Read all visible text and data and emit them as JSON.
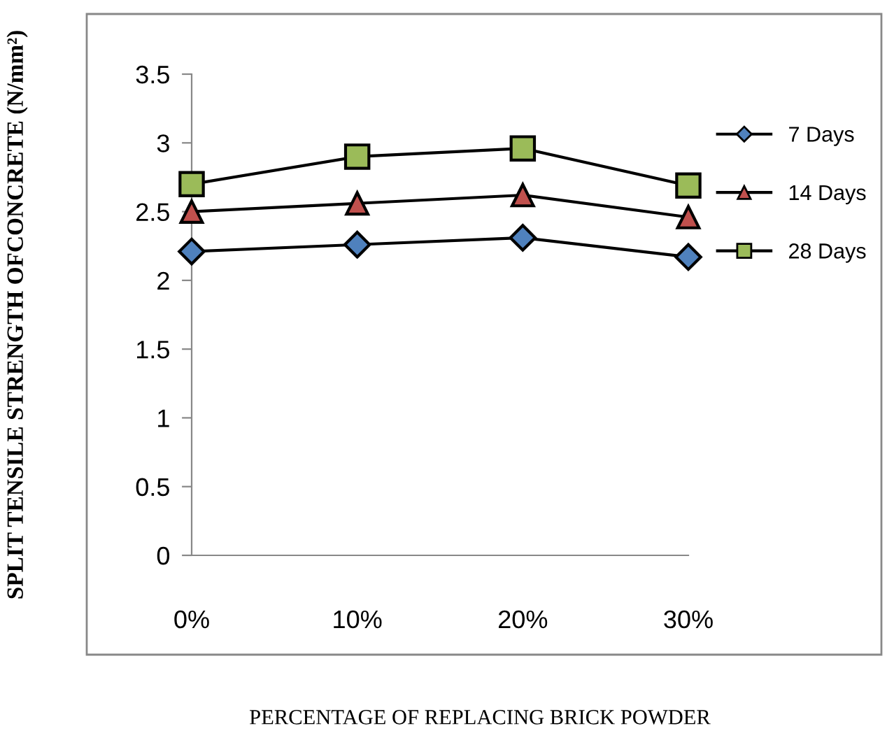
{
  "chart_data": {
    "type": "line",
    "ylabel": "SPLIT TENSILE STRENGTH OFCONCRETE (N/mm²)",
    "xlabel": "PERCENTAGE OF REPLACING BRICK POWDER",
    "categories": [
      "0%",
      "10%",
      "20%",
      "30%"
    ],
    "series": [
      {
        "name": "7 Days",
        "color": "#4f81bd",
        "marker": "diamond",
        "values": [
          2.21,
          2.26,
          2.31,
          2.17
        ]
      },
      {
        "name": "14 Days",
        "color": "#c0504d",
        "marker": "triangle",
        "values": [
          2.5,
          2.56,
          2.62,
          2.46
        ]
      },
      {
        "name": "28 Days",
        "color": "#9bbb59",
        "marker": "square",
        "values": [
          2.7,
          2.9,
          2.96,
          2.69
        ]
      }
    ],
    "ylim": [
      0,
      3.5
    ],
    "yticks": [
      0,
      0.5,
      1,
      1.5,
      2,
      2.5,
      3,
      3.5
    ],
    "grid": false,
    "legend": "right",
    "line_style": "solid"
  }
}
